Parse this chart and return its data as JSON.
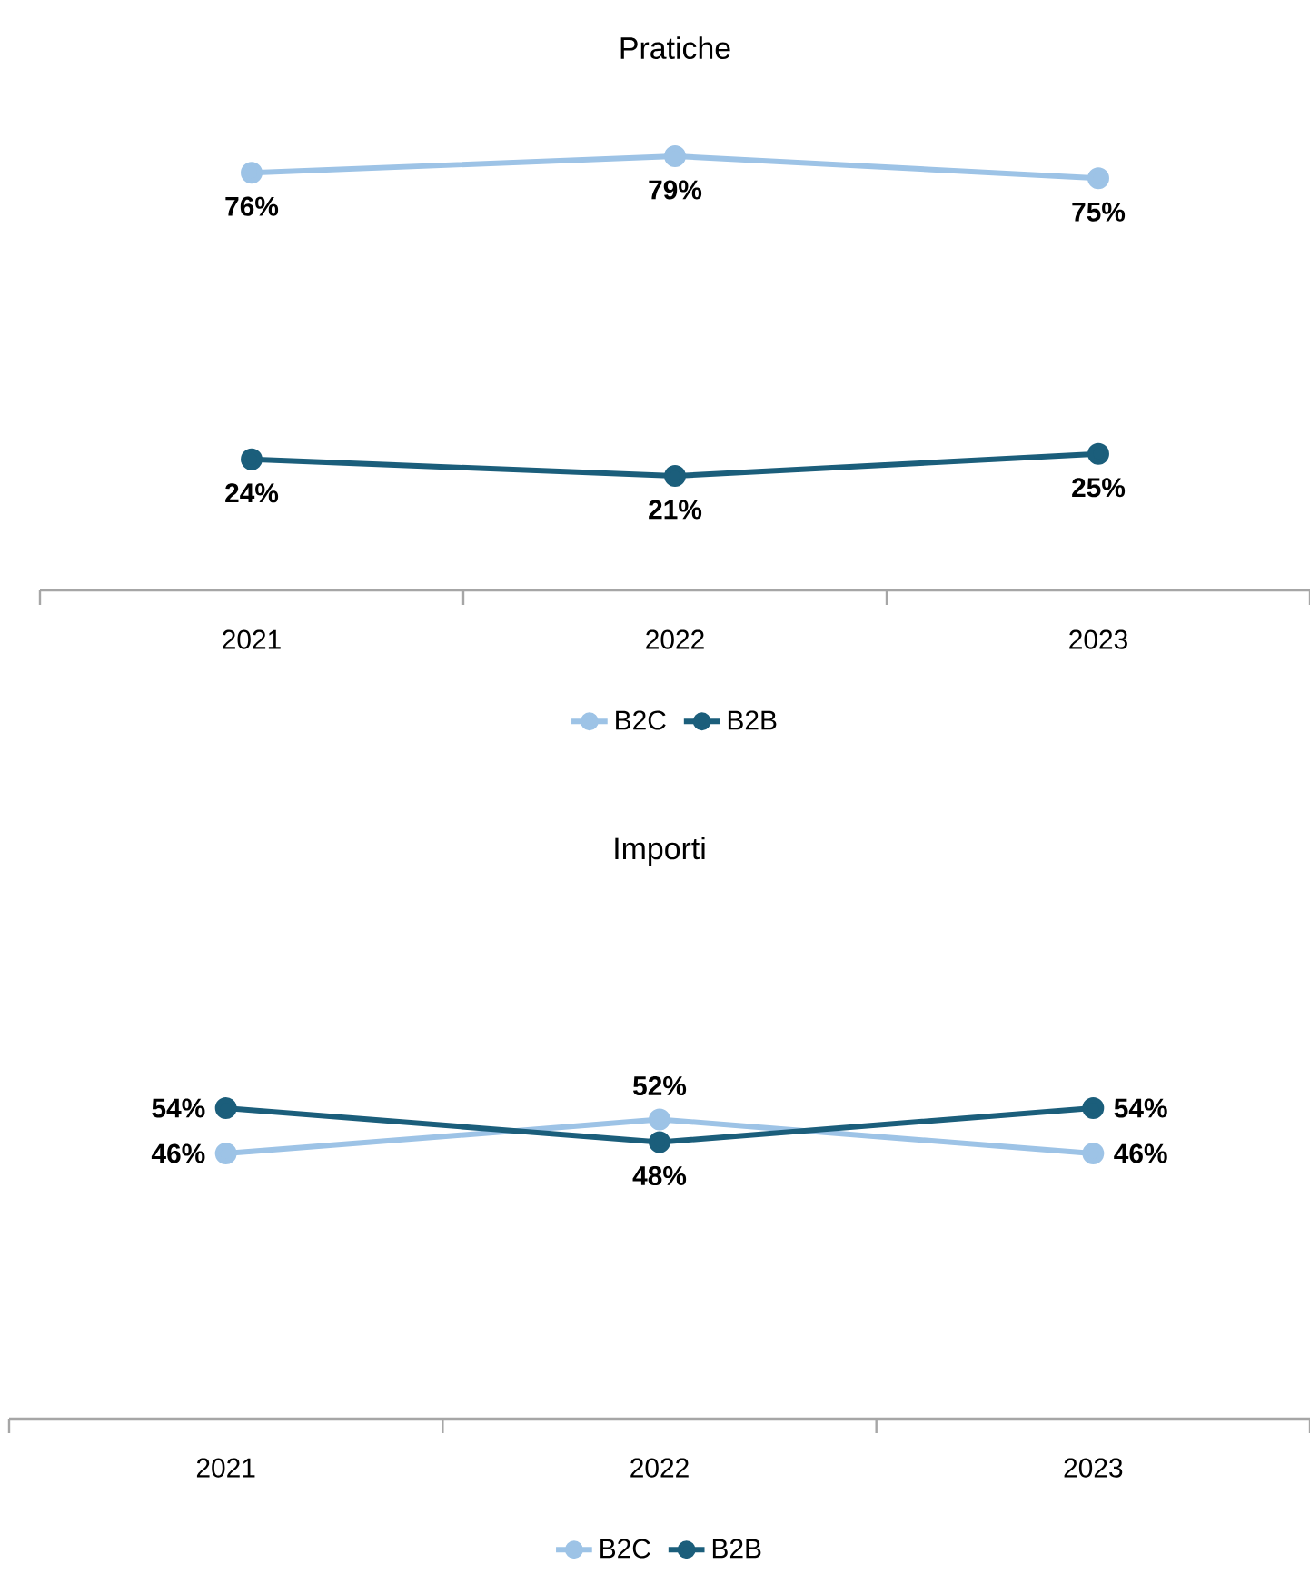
{
  "chart_data": [
    {
      "type": "line",
      "title": "Pratiche",
      "categories": [
        "2021",
        "2022",
        "2023"
      ],
      "tick_labels": "x",
      "grid": false,
      "legend": "bottom",
      "marker": "circle",
      "line_style": "solid",
      "series": [
        {
          "name": "B2C",
          "color": "#9dc3e6",
          "values": [
            76,
            79,
            75
          ],
          "value_labels": [
            "76%",
            "79%",
            "75%"
          ]
        },
        {
          "name": "B2B",
          "color": "#1b5e7b",
          "values": [
            24,
            21,
            25
          ],
          "value_labels": [
            "24%",
            "21%",
            "25%"
          ]
        }
      ]
    },
    {
      "type": "line",
      "title": "Importi",
      "categories": [
        "2021",
        "2022",
        "2023"
      ],
      "tick_labels": "x",
      "grid": false,
      "legend": "bottom",
      "marker": "circle",
      "line_style": "solid",
      "series": [
        {
          "name": "B2C",
          "color": "#9dc3e6",
          "values": [
            46,
            52,
            46
          ],
          "value_labels": [
            "46%",
            "52%",
            "46%"
          ]
        },
        {
          "name": "B2B",
          "color": "#1b5e7b",
          "values": [
            54,
            48,
            54
          ],
          "value_labels": [
            "54%",
            "48%",
            "54%"
          ]
        }
      ]
    }
  ]
}
